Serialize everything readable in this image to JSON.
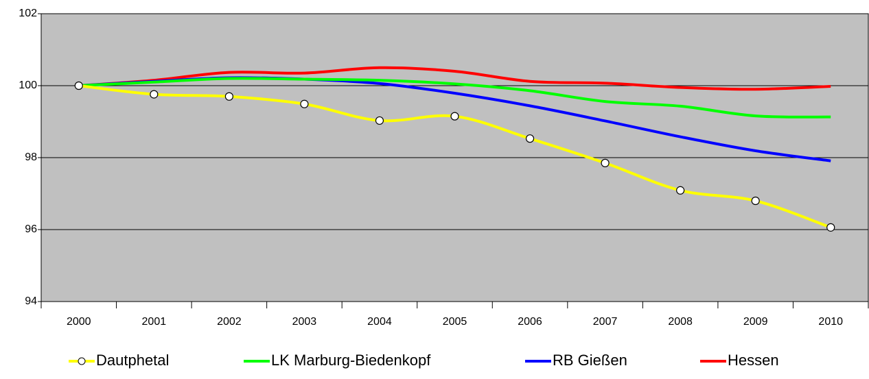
{
  "chart_data": {
    "type": "line",
    "categories": [
      "2000",
      "2001",
      "2002",
      "2003",
      "2004",
      "2005",
      "2006",
      "2007",
      "2008",
      "2009",
      "2010"
    ],
    "series": [
      {
        "name": "Dautphetal",
        "color": "#ffff00",
        "marker": true,
        "values": [
          100,
          99.76,
          99.7,
          99.49,
          99.03,
          99.15,
          98.53,
          97.85,
          97.09,
          96.8,
          96.06
        ]
      },
      {
        "name": "LK Marburg-Biedenkopf",
        "color": "#00ff00",
        "marker": false,
        "values": [
          100,
          100.1,
          100.2,
          100.18,
          100.15,
          100.05,
          99.86,
          99.56,
          99.43,
          99.16,
          99.13
        ]
      },
      {
        "name": "RB Gießen",
        "color": "#0000ff",
        "marker": false,
        "values": [
          100,
          100.12,
          100.22,
          100.18,
          100.06,
          99.79,
          99.44,
          99.02,
          98.58,
          98.19,
          97.91
        ]
      },
      {
        "name": "Hessen",
        "color": "#ff0000",
        "marker": false,
        "values": [
          100,
          100.15,
          100.37,
          100.35,
          100.5,
          100.4,
          100.12,
          100.07,
          99.95,
          99.9,
          99.98
        ]
      }
    ],
    "ylim": [
      94,
      102
    ],
    "yticks": [
      94,
      96,
      98,
      100,
      102
    ],
    "grid": true,
    "legend": "bottom"
  }
}
